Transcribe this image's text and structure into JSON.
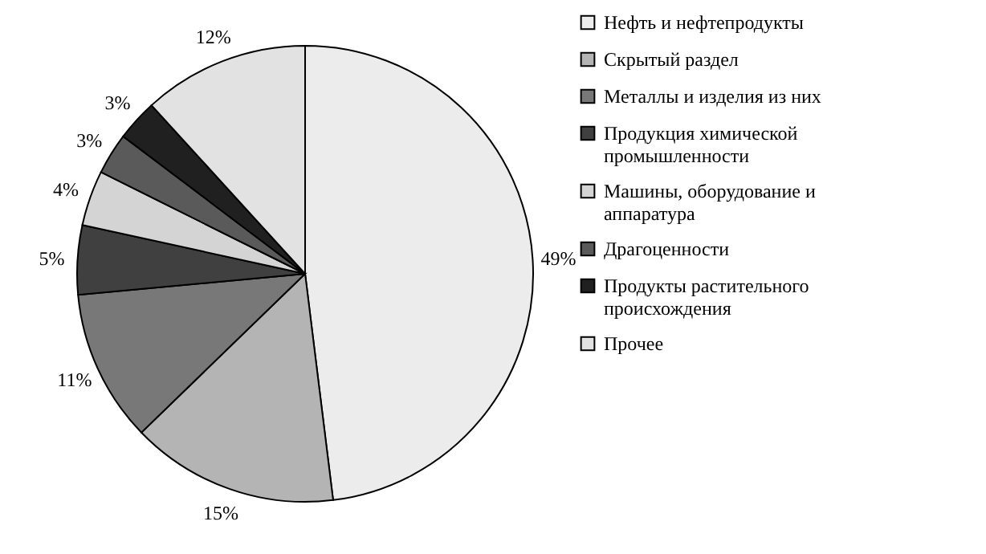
{
  "chart_data": {
    "type": "pie",
    "categories": [
      "Нефть и нефтепродукты",
      "Скрытый раздел",
      "Металлы и изделия из них",
      "Продукция химической промышленности",
      "Машины, оборудование и аппаратура",
      "Драгоценности",
      "Продукты растительного происхождения",
      "Прочее"
    ],
    "values": [
      49,
      15,
      11,
      5,
      4,
      3,
      3,
      12
    ],
    "value_labels": [
      "49%",
      "15%",
      "11%",
      "5%",
      "4%",
      "3%",
      "3%",
      "12%"
    ],
    "colors": [
      "#ececec",
      "#b4b4b4",
      "#787878",
      "#404040",
      "#d4d4d4",
      "#5a5a5a",
      "#202020",
      "#e2e2e2"
    ],
    "legend": "right"
  }
}
